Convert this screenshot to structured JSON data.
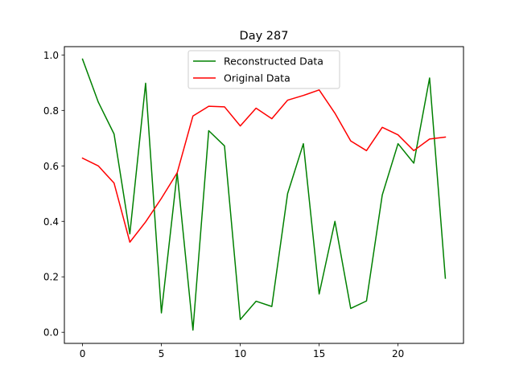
{
  "chart_data": {
    "type": "line",
    "title": "Day 287",
    "xlabel": "",
    "ylabel": "",
    "x": [
      0,
      1,
      2,
      3,
      4,
      5,
      6,
      7,
      8,
      9,
      10,
      11,
      12,
      13,
      14,
      15,
      16,
      17,
      18,
      19,
      20,
      21,
      22,
      23
    ],
    "xlim": [
      -1.15,
      24.15
    ],
    "ylim": [
      -0.04,
      1.03
    ],
    "xticks": [
      0,
      5,
      10,
      15,
      20
    ],
    "yticks": [
      0.0,
      0.2,
      0.4,
      0.6,
      0.8,
      1.0
    ],
    "xtick_labels": [
      "0",
      "5",
      "10",
      "15",
      "20"
    ],
    "ytick_labels": [
      "0.0",
      "0.2",
      "0.4",
      "0.6",
      "0.8",
      "1.0"
    ],
    "grid": false,
    "legend_position": "upper center",
    "series": [
      {
        "name": "Reconstructed Data",
        "color": "#008000",
        "values": [
          0.985,
          0.83,
          0.715,
          0.355,
          0.898,
          0.07,
          0.575,
          0.008,
          0.727,
          0.672,
          0.046,
          0.112,
          0.093,
          0.5,
          0.68,
          0.138,
          0.4,
          0.086,
          0.113,
          0.495,
          0.68,
          0.61,
          0.917,
          0.195
        ]
      },
      {
        "name": "Original Data",
        "color": "#ff0000",
        "values": [
          0.628,
          0.6,
          0.538,
          0.325,
          0.398,
          0.483,
          0.575,
          0.78,
          0.815,
          0.813,
          0.744,
          0.808,
          0.77,
          0.837,
          0.854,
          0.874,
          0.79,
          0.69,
          0.655,
          0.739,
          0.712,
          0.655,
          0.697,
          0.704
        ]
      }
    ]
  }
}
